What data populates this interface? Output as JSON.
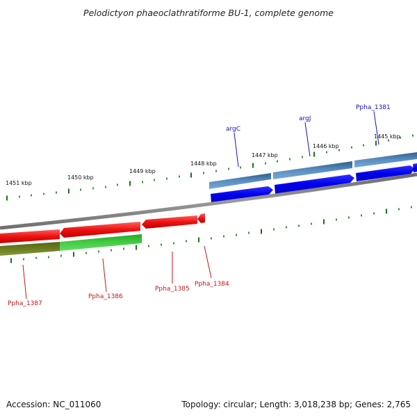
{
  "title": "Pelodictyon phaeoclathratiforme BU-1, complete genome",
  "footer": {
    "accession": "Accession: NC_011060",
    "stats": "Topology: circular; Length: 3,018,238 bp; Genes: 2,765"
  },
  "ruler": {
    "labels": [
      "1451 kbp",
      "1450 kbp",
      "1449 kbp",
      "1448 kbp",
      "1447 kbp",
      "1446 kbp",
      "1445 kbp"
    ]
  },
  "genes_top": [
    {
      "label": "argC",
      "color": "#1010c8"
    },
    {
      "label": "argJ",
      "color": "#1010c8"
    },
    {
      "label": "Ppha_1381",
      "color": "#1010c8"
    }
  ],
  "genes_bottom": [
    {
      "label": "Ppha_1387",
      "color": "#cc1010"
    },
    {
      "label": "Ppha_1386",
      "color": "#cc1010"
    },
    {
      "label": "Ppha_1385",
      "color": "#cc1010"
    },
    {
      "label": "Ppha_1384",
      "color": "#cc1010"
    }
  ],
  "colors": {
    "forward_cds": "#0000ee",
    "forward_band": "#4a7fb0",
    "reverse_cds": "#ee1111",
    "reverse_band": "#33bb33",
    "reverse_band_dark": "#667722",
    "backbone": "#808080",
    "ticks": "#117711"
  }
}
